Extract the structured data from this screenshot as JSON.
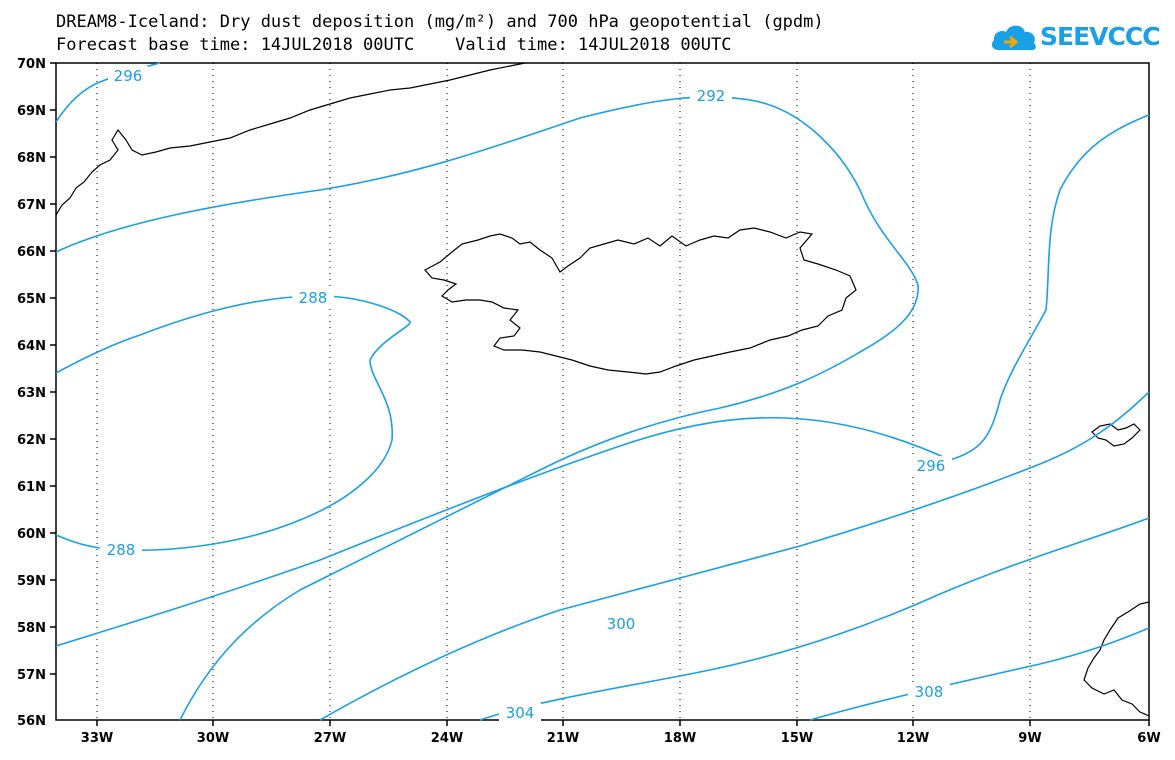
{
  "header": {
    "title_line1": "DREAM8-Iceland: Dry dust deposition (mg/m²) and 700 hPa geopotential (gpdm)",
    "title_line2": "Forecast base time: 14JUL2018 00UTC    Valid time: 14JUL2018 00UTC"
  },
  "logo": {
    "text": "SEEVCCC",
    "icon": "cloud-icon",
    "color": "#1aa0e6"
  },
  "map": {
    "lat_labels": [
      "70N",
      "69N",
      "68N",
      "67N",
      "66N",
      "65N",
      "64N",
      "63N",
      "62N",
      "61N",
      "60N",
      "59N",
      "58N",
      "57N",
      "56N"
    ],
    "lon_labels": [
      "33W",
      "30W",
      "27W",
      "24W",
      "21W",
      "18W",
      "15W",
      "12W",
      "9W",
      "6W"
    ],
    "contour_color": "#1aa0e6",
    "contour_labels": {
      "c296_top": "296",
      "c292": "292",
      "c288_top": "288",
      "c288_bottom": "288",
      "c296_right": "296",
      "c300": "300",
      "c304": "304",
      "c308": "308"
    }
  }
}
